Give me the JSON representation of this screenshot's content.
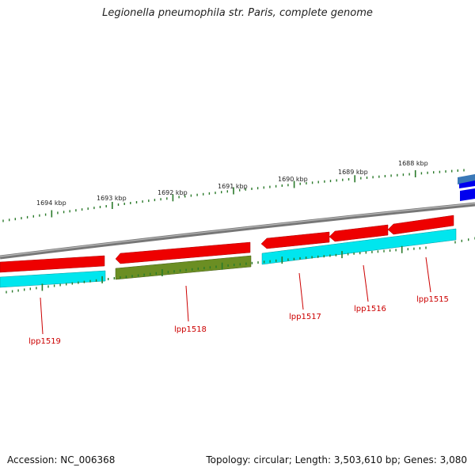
{
  "title": "Legionella pneumophila str. Paris, complete genome",
  "footer": {
    "accession": "Accession: NC_006368",
    "stats": "Topology: circular; Length: 3,503,610 bp; Genes: 3,080"
  },
  "kbp_labels": [
    "1694 kbp",
    "1693 kbp",
    "1692 kbp",
    "1691 kbp",
    "1690 kbp",
    "1689 kbp",
    "1688 kbp"
  ],
  "gene_labels": [
    "lpp1519",
    "lpp1518",
    "lpp1517",
    "lpp1516",
    "lpp1515"
  ],
  "colors": {
    "backbone": "#777777",
    "forward_gene": "#ee0000",
    "reverse_gene": "#00e6ee",
    "highlight_gene": "#6b8e23",
    "rna_gene": "#0000ee",
    "tick": "#2a7a2a",
    "gene_label": "#cc0000"
  }
}
